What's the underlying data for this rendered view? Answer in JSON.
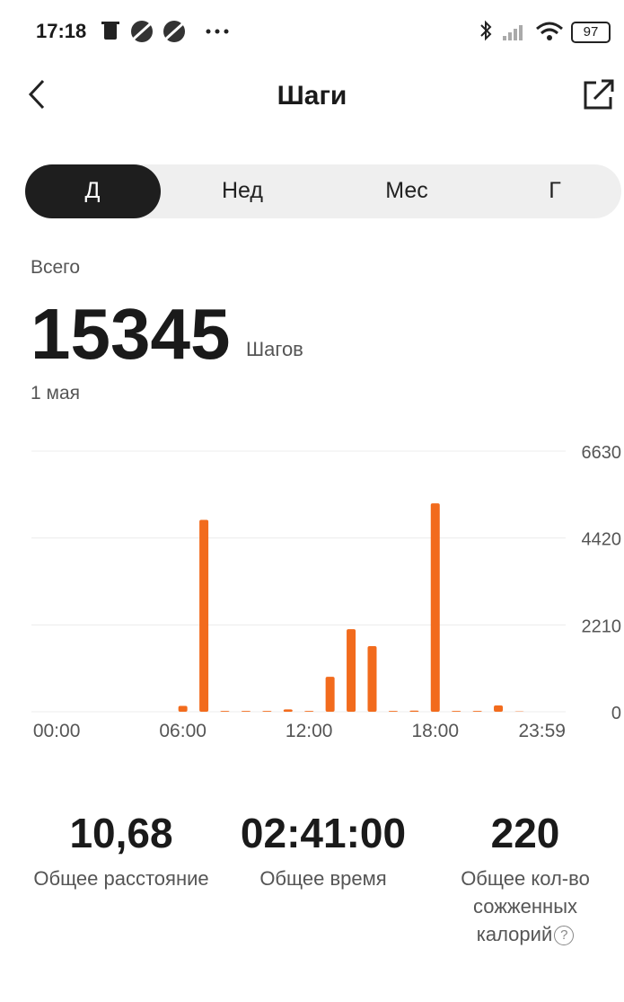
{
  "status_bar": {
    "time": "17:18",
    "battery": "97"
  },
  "header": {
    "title": "Шаги"
  },
  "tabs": [
    "Д",
    "Нед",
    "Мес",
    "Г"
  ],
  "summary": {
    "label": "Всего",
    "total": "15345",
    "unit": "Шагов",
    "date": "1 мая"
  },
  "chart_data": {
    "type": "bar",
    "x": [
      0,
      1,
      2,
      3,
      4,
      5,
      6,
      7,
      8,
      9,
      10,
      11,
      12,
      13,
      14,
      15,
      16,
      17,
      18,
      19,
      20,
      21,
      22,
      23
    ],
    "values": [
      0,
      0,
      0,
      0,
      0,
      0,
      150,
      4880,
      20,
      20,
      20,
      60,
      20,
      890,
      2100,
      1670,
      20,
      30,
      5300,
      20,
      20,
      160,
      10,
      0
    ],
    "color": "#f26b1d",
    "xlim": [
      -1.2,
      24.2
    ],
    "xticks": [
      {
        "value": 0,
        "label": "00:00"
      },
      {
        "value": 6,
        "label": "06:00"
      },
      {
        "value": 12,
        "label": "12:00"
      },
      {
        "value": 18,
        "label": "18:00"
      },
      {
        "value": 23.98,
        "label": "23:59"
      }
    ],
    "ylim": [
      0,
      6630
    ],
    "yticks": [
      0,
      2210,
      4420,
      6630
    ],
    "grid": true
  },
  "stats": [
    {
      "value": "10,68",
      "label": "Общее расстояние"
    },
    {
      "value": "02:41:00",
      "label": "Общее время"
    },
    {
      "value": "220",
      "label": "Общее кол-во сожженных калорий",
      "help_icon": "?"
    }
  ]
}
